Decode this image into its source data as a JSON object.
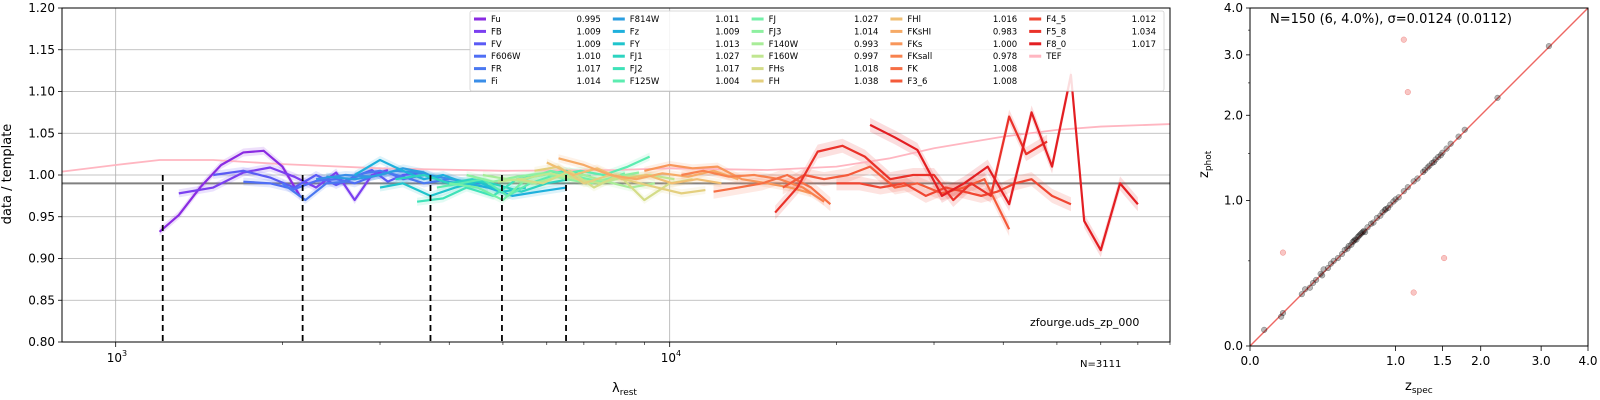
{
  "chart_data": [
    {
      "type": "line",
      "xlabel": "λ",
      "xlabel_sub": "rest",
      "ylabel": "data / template",
      "xscale": "log",
      "xlim": [
        800,
        80000
      ],
      "ylim": [
        0.8,
        1.2
      ],
      "xticks": [
        {
          "label": "10",
          "exp": "3",
          "x": 1000
        },
        {
          "label": "10",
          "exp": "4",
          "x": 10000
        }
      ],
      "yticks": [
        "0.80",
        "0.85",
        "0.90",
        "0.95",
        "1.00",
        "1.05",
        "1.10",
        "1.15",
        "1.20"
      ],
      "grid": true,
      "legend_position": "top-right",
      "annotation": "zfourge.uds_zp_000",
      "n_label": "N=3111",
      "reference_line_y": 0.99,
      "dashed_lines": [
        {
          "x": 1216,
          "y": 1.0
        },
        {
          "x": 2175,
          "y": 1.0
        },
        {
          "x": 3700,
          "y": 1.0
        },
        {
          "x": 4980,
          "y": 1.0
        },
        {
          "x": 6500,
          "y": 1.0
        }
      ],
      "template_curve": {
        "name": "TEF",
        "color": "#ffb6c1",
        "x": [
          800,
          1000,
          1200,
          1500,
          2000,
          3000,
          5000,
          8000,
          10000,
          15000,
          20000,
          25000,
          30000,
          40000,
          50000,
          60000,
          80000
        ],
        "y": [
          1.004,
          1.012,
          1.018,
          1.018,
          1.013,
          1.008,
          1.005,
          1.006,
          1.008,
          1.006,
          1.01,
          1.02,
          1.032,
          1.046,
          1.054,
          1.058,
          1.061
        ]
      },
      "series": [
        {
          "name": "Fu",
          "value": "0.995",
          "color": "#8a2be2",
          "x": [
            1200,
            1300,
            1420,
            1550,
            1700,
            1850,
            2000,
            2150
          ],
          "y": [
            0.932,
            0.952,
            0.985,
            1.012,
            1.027,
            1.029,
            1.01,
            0.975
          ]
        },
        {
          "name": "FB",
          "value": "1.009",
          "color": "#7b3ff0",
          "x": [
            1300,
            1500,
            1700,
            1900,
            2100,
            2300,
            2500,
            2700,
            2900,
            3100
          ],
          "y": [
            0.978,
            0.985,
            1.003,
            1.009,
            0.998,
            0.985,
            1.003,
            0.97,
            1.0,
            1.006
          ]
        },
        {
          "name": "FV",
          "value": "1.009",
          "color": "#5a5af5",
          "x": [
            1500,
            1700,
            1900,
            2100,
            2300,
            2500,
            2700,
            2900,
            3100,
            3300,
            3600
          ],
          "y": [
            1.0,
            1.005,
            0.997,
            0.985,
            1.0,
            0.988,
            0.998,
            1.006,
            0.992,
            1.0,
            1.003
          ]
        },
        {
          "name": "F606W",
          "value": "1.010",
          "color": "#4f6ef5",
          "x": [
            1700,
            1900,
            2100,
            2300,
            2500,
            2700,
            2900,
            3100,
            3300,
            3600
          ],
          "y": [
            0.992,
            0.99,
            0.983,
            0.993,
            0.995,
            0.99,
            0.998,
            1.003,
            0.995,
            1.0
          ]
        },
        {
          "name": "FR",
          "value": "1.017",
          "color": "#4a78f0",
          "x": [
            2000,
            2200,
            2400,
            2600,
            2800,
            3000,
            3300,
            3600,
            4000
          ],
          "y": [
            0.99,
            0.97,
            0.99,
            0.992,
            1.002,
            1.005,
            0.998,
            0.99,
            0.995
          ]
        },
        {
          "name": "Fi",
          "value": "1.014",
          "color": "#3a8ee8",
          "x": [
            2300,
            2600,
            2900,
            3200,
            3500,
            3800,
            4200,
            4600
          ],
          "y": [
            0.995,
            1.0,
            0.998,
            1.005,
            1.003,
            0.998,
            0.993,
            0.99
          ]
        },
        {
          "name": "F814W",
          "value": "1.011",
          "color": "#2a9ee0",
          "x": [
            2400,
            2700,
            3000,
            3300,
            3600,
            3900,
            4300,
            4700
          ],
          "y": [
            0.998,
            0.995,
            1.0,
            1.008,
            1.003,
            0.992,
            0.99,
            0.985
          ]
        },
        {
          "name": "Fz",
          "value": "1.009",
          "color": "#1fb0dc",
          "x": [
            2700,
            3000,
            3300,
            3600,
            3900,
            4300,
            4700,
            5200,
            5800,
            6500
          ],
          "y": [
            1.0,
            1.018,
            1.005,
            0.995,
            1.0,
            0.99,
            0.985,
            0.975,
            0.98,
            0.985
          ]
        },
        {
          "name": "FY",
          "value": "1.013",
          "color": "#1fc4cc",
          "x": [
            3000,
            3300,
            3700,
            4100,
            4500,
            5000,
            5500
          ],
          "y": [
            0.985,
            0.99,
            0.975,
            0.985,
            0.992,
            0.98,
            0.985
          ]
        },
        {
          "name": "FJ1",
          "value": "1.027",
          "color": "#2cd4c0",
          "x": [
            3200,
            3600,
            4000,
            4400,
            4900,
            5400,
            6000,
            6600
          ],
          "y": [
            0.995,
            1.0,
            0.99,
            0.995,
            0.988,
            0.98,
            0.99,
            0.995
          ]
        },
        {
          "name": "FJ2",
          "value": "1.017",
          "color": "#3ee2b8",
          "x": [
            3500,
            3900,
            4300,
            4800,
            5300,
            5900,
            6500,
            7200
          ],
          "y": [
            0.968,
            0.972,
            0.985,
            0.975,
            0.995,
            1.0,
            1.005,
            0.998
          ]
        },
        {
          "name": "F125W",
          "value": "1.004",
          "color": "#5cecb0",
          "x": [
            3800,
            4200,
            4600,
            5100,
            5600,
            6200,
            6900,
            7600,
            8400,
            9200
          ],
          "y": [
            0.985,
            0.99,
            0.995,
            0.975,
            0.99,
            1.0,
            1.005,
            1.0,
            1.01,
            1.022
          ]
        },
        {
          "name": "FJ",
          "value": "1.027",
          "color": "#74f0a8",
          "x": [
            4000,
            4500,
            5000,
            5500,
            6100,
            6800,
            7500,
            8300
          ],
          "y": [
            0.99,
            0.985,
            0.97,
            0.995,
            1.005,
            0.998,
            0.992,
            1.002
          ]
        },
        {
          "name": "FJ3",
          "value": "1.014",
          "color": "#8ef0a0",
          "x": [
            4300,
            4800,
            5300,
            5900,
            6500,
            7200,
            8000,
            8800
          ],
          "y": [
            1.0,
            0.992,
            0.998,
            1.002,
            0.995,
            0.99,
            0.998,
            1.003
          ]
        },
        {
          "name": "F140W",
          "value": "0.993",
          "color": "#a8ec98",
          "x": [
            4600,
            5100,
            5700,
            6300,
            7000,
            7700,
            8500,
            9400
          ],
          "y": [
            1.0,
            0.995,
            0.99,
            0.998,
            1.0,
            0.992,
            0.985,
            0.99
          ]
        },
        {
          "name": "F160W",
          "value": "0.997",
          "color": "#c0e690",
          "x": [
            4900,
            5500,
            6100,
            6800,
            7500,
            8300,
            9200,
            10200
          ],
          "y": [
            0.992,
            0.996,
            1.002,
            0.995,
            0.99,
            0.998,
            1.0,
            0.995
          ]
        },
        {
          "name": "FHs",
          "value": "1.018",
          "color": "#d4dc88",
          "x": [
            5300,
            5900,
            6600,
            7300,
            8100,
            9000,
            10000,
            11000
          ],
          "y": [
            0.995,
            0.99,
            1.005,
            0.985,
            1.0,
            0.97,
            0.99,
            0.995
          ]
        },
        {
          "name": "FH",
          "value": "1.038",
          "color": "#e4cf7e",
          "x": [
            5700,
            6300,
            7000,
            7800,
            8600,
            9500,
            10500,
            11600
          ],
          "y": [
            1.005,
            1.01,
            0.99,
            1.0,
            0.992,
            0.985,
            0.978,
            0.982
          ]
        },
        {
          "name": "FHl",
          "value": "1.016",
          "color": "#f0be72",
          "x": [
            6000,
            6700,
            7400,
            8200,
            9100,
            10100,
            11200,
            12400
          ],
          "y": [
            1.015,
            1.0,
            1.008,
            0.995,
            1.0,
            0.99,
            0.995,
            0.99
          ]
        },
        {
          "name": "FKsHI",
          "value": "0.983",
          "color": "#f6aa66",
          "x": [
            6300,
            7000,
            7800,
            8700,
            9700,
            10800,
            12000,
            13300
          ],
          "y": [
            1.02,
            1.012,
            1.0,
            0.995,
            1.002,
            0.998,
            1.005,
            0.995
          ]
        },
        {
          "name": "FKs",
          "value": "1.000",
          "color": "#f8965a",
          "x": [
            9000,
            10000,
            11000,
            12200,
            13500,
            15000,
            16500,
            18000
          ],
          "y": [
            1.005,
            1.012,
            1.008,
            1.01,
            0.995,
            0.99,
            0.985,
            0.978
          ]
        },
        {
          "name": "FKsall",
          "value": "0.978",
          "color": "#f8824e",
          "x": [
            10500,
            11500,
            12800,
            14200,
            15800,
            17400,
            19000
          ],
          "y": [
            1.0,
            1.005,
            0.998,
            1.0,
            0.995,
            0.985,
            0.968
          ]
        },
        {
          "name": "FK",
          "value": "1.008",
          "color": "#f66e44",
          "x": [
            12000,
            13300,
            14700,
            16300,
            18000,
            19500
          ],
          "y": [
            0.98,
            0.985,
            0.99,
            1.0,
            0.985,
            0.965
          ]
        },
        {
          "name": "F3_6",
          "value": "1.008",
          "color": "#f45a3a",
          "x": [
            16000,
            17500,
            19000,
            21000,
            23000,
            25500,
            28000,
            31000,
            34000,
            37000,
            41000
          ],
          "y": [
            0.985,
            1.0,
            0.995,
            1.0,
            1.01,
            0.985,
            0.99,
            0.978,
            0.985,
            0.995,
            0.935
          ]
        },
        {
          "name": "F4_5",
          "value": "1.012",
          "color": "#f04632",
          "x": [
            20000,
            22000,
            24000,
            26500,
            29000,
            31500,
            34000,
            36500,
            39000,
            42000,
            45000,
            49000,
            53000
          ],
          "y": [
            0.99,
            0.99,
            0.985,
            0.99,
            0.975,
            0.985,
            0.98,
            0.975,
            0.98,
            0.99,
            0.995,
            0.975,
            0.965
          ]
        },
        {
          "name": "F5_8",
          "value": "1.034",
          "color": "#ea322a",
          "x": [
            15500,
            17000,
            18500,
            20500,
            22500,
            25000,
            27500,
            30000,
            32500,
            35000,
            38000,
            41000,
            44000,
            48000
          ],
          "y": [
            0.955,
            0.985,
            1.028,
            1.035,
            1.022,
            0.995,
            1.0,
            1.0,
            0.97,
            0.99,
            0.975,
            1.07,
            1.025,
            1.04
          ]
        },
        {
          "name": "F8_0",
          "value": "1.017",
          "color": "#e31e22",
          "x": [
            23000,
            25500,
            28000,
            31000,
            34000,
            37500,
            41000,
            45000,
            49000,
            53000,
            56000,
            60000,
            65000,
            70000
          ],
          "y": [
            1.06,
            1.045,
            1.03,
            0.975,
            0.99,
            1.01,
            0.965,
            1.075,
            1.01,
            1.12,
            0.945,
            0.91,
            0.99,
            0.965
          ]
        }
      ]
    },
    {
      "type": "scatter",
      "title": "N=150 (6,  4.0%), σ=0.0124 (0.0112)",
      "xlabel": "z",
      "xlabel_sub": "spec",
      "ylabel": "z",
      "ylabel_sub": "phot",
      "scale": "log(1+z)",
      "xlim": [
        0.0,
        4.0
      ],
      "ylim": [
        0.0,
        4.0
      ],
      "xticks": [
        "0.0",
        "1.0",
        "1.5",
        "2.0",
        "3.0",
        "4.0"
      ],
      "xtick_values": [
        0.0,
        1.0,
        1.5,
        2.0,
        3.0,
        4.0
      ],
      "yticks": [
        "0.0",
        "1.0",
        "2.0",
        "3.0",
        "4.0"
      ],
      "ytick_values": [
        0.0,
        1.0,
        2.0,
        3.0,
        4.0
      ],
      "identity_line_color": "#e8413c",
      "points": [
        [
          0.07,
          0.08
        ],
        [
          0.16,
          0.15
        ],
        [
          0.17,
          0.17
        ],
        [
          0.28,
          0.28
        ],
        [
          0.3,
          0.31
        ],
        [
          0.33,
          0.32
        ],
        [
          0.35,
          0.35
        ],
        [
          0.37,
          0.37
        ],
        [
          0.4,
          0.41
        ],
        [
          0.41,
          0.4
        ],
        [
          0.42,
          0.44
        ],
        [
          0.45,
          0.45
        ],
        [
          0.47,
          0.48
        ],
        [
          0.49,
          0.5
        ],
        [
          0.52,
          0.52
        ],
        [
          0.55,
          0.55
        ],
        [
          0.57,
          0.58
        ],
        [
          0.59,
          0.59
        ],
        [
          0.6,
          0.61
        ],
        [
          0.62,
          0.62
        ],
        [
          0.63,
          0.64
        ],
        [
          0.64,
          0.65
        ],
        [
          0.65,
          0.66
        ],
        [
          0.66,
          0.66
        ],
        [
          0.67,
          0.68
        ],
        [
          0.68,
          0.69
        ],
        [
          0.69,
          0.7
        ],
        [
          0.7,
          0.71
        ],
        [
          0.71,
          0.72
        ],
        [
          0.72,
          0.73
        ],
        [
          0.73,
          0.72
        ],
        [
          0.75,
          0.76
        ],
        [
          0.78,
          0.79
        ],
        [
          0.8,
          0.8
        ],
        [
          0.83,
          0.84
        ],
        [
          0.86,
          0.86
        ],
        [
          0.88,
          0.89
        ],
        [
          0.9,
          0.91
        ],
        [
          0.91,
          0.92
        ],
        [
          0.93,
          0.93
        ],
        [
          0.95,
          0.96
        ],
        [
          0.98,
          0.99
        ],
        [
          1.0,
          1.01
        ],
        [
          1.03,
          1.03
        ],
        [
          1.08,
          1.09
        ],
        [
          1.12,
          1.13
        ],
        [
          1.18,
          1.19
        ],
        [
          1.22,
          1.22
        ],
        [
          1.28,
          1.29
        ],
        [
          1.3,
          1.31
        ],
        [
          1.33,
          1.34
        ],
        [
          1.35,
          1.36
        ],
        [
          1.38,
          1.39
        ],
        [
          1.4,
          1.4
        ],
        [
          1.42,
          1.43
        ],
        [
          1.45,
          1.46
        ],
        [
          1.48,
          1.48
        ],
        [
          1.5,
          1.51
        ],
        [
          1.55,
          1.56
        ],
        [
          1.6,
          1.62
        ],
        [
          1.7,
          1.71
        ],
        [
          1.78,
          1.8
        ],
        [
          2.25,
          2.26
        ],
        [
          3.15,
          3.17
        ]
      ],
      "outliers": [
        [
          0.17,
          0.56
        ],
        [
          1.08,
          3.3
        ],
        [
          1.12,
          2.35
        ],
        [
          1.18,
          0.29
        ],
        [
          1.52,
          0.52
        ]
      ]
    }
  ]
}
